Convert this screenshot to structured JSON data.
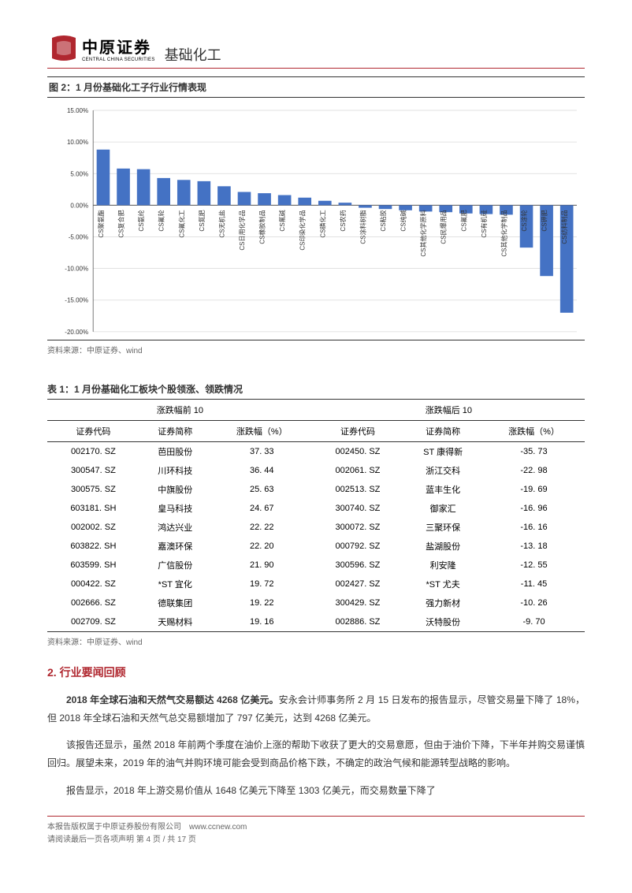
{
  "header": {
    "logo_cn": "中原证券",
    "logo_en": "CENTRAL CHINA SECURITIES",
    "doc_title": "基础化工"
  },
  "figure2": {
    "title": "图 2：1 月份基础化工子行业行情表现",
    "source": "资料来源：中原证券、wind",
    "type": "bar",
    "ylim": [
      -20,
      15
    ],
    "ytick_step": 5,
    "yticks": [
      "15.00%",
      "10.00%",
      "5.00%",
      "0.00%",
      "-5.00%",
      "-10.00%",
      "-15.00%",
      "-20.00%"
    ],
    "ytick_vals": [
      15,
      10,
      5,
      0,
      -5,
      -10,
      -15,
      -20
    ],
    "bar_color": "#4472c4",
    "grid_color": "#d9d9d9",
    "axis_color": "#595959",
    "background_color": "#ffffff",
    "title_fontsize": 12,
    "label_fontsize": 8,
    "bar_width": 0.65,
    "categories": [
      "CS聚氨酯",
      "CS复合肥",
      "CS氨纶",
      "CS氟轮",
      "CS氟化工",
      "CS氮肥",
      "CS无机盐",
      "CS日用化学品",
      "CS橡胶制品",
      "CS氟碱",
      "CS印染化学品",
      "CS磷化工",
      "CS农药",
      "CS涂料树脂",
      "CS粘胶",
      "CS纯碱",
      "CS其他化学原料",
      "CS民爆用品",
      "CS氟肥",
      "CS有机硅",
      "CS其他化学制品",
      "CS涂轮",
      "CS钾肥",
      "CS纺料制品"
    ],
    "values": [
      8.8,
      5.8,
      5.7,
      4.3,
      4.0,
      3.8,
      3.0,
      2.1,
      1.9,
      1.6,
      1.2,
      0.7,
      0.4,
      -0.4,
      -0.6,
      -0.8,
      -1.0,
      -1.1,
      -1.3,
      -1.4,
      -1.5,
      -6.7,
      -11.2,
      -17.0
    ]
  },
  "table1": {
    "title": "表 1：1 月份基础化工板块个股领涨、领跌情况",
    "source": "资料来源：中原证券、wind",
    "group_left": "涨跌幅前 10",
    "group_right": "涨跌幅后 10",
    "columns": [
      "证券代码",
      "证券简称",
      "涨跌幅（%）",
      "证券代码",
      "证券简称",
      "涨跌幅（%）"
    ],
    "rows": [
      [
        "002170. SZ",
        "芭田股份",
        "37. 33",
        "002450. SZ",
        "ST 康得新",
        "-35. 73"
      ],
      [
        "300547. SZ",
        "川环科技",
        "36. 44",
        "002061. SZ",
        "浙江交科",
        "-22. 98"
      ],
      [
        "300575. SZ",
        "中旗股份",
        "25. 63",
        "002513. SZ",
        "蓝丰生化",
        "-19. 69"
      ],
      [
        "603181. SH",
        "皇马科技",
        "24. 67",
        "300740. SZ",
        "御家汇",
        "-16. 96"
      ],
      [
        "002002. SZ",
        "鸿达兴业",
        "22. 22",
        "300072. SZ",
        "三聚环保",
        "-16. 16"
      ],
      [
        "603822. SH",
        "嘉澳环保",
        "22. 20",
        "000792. SZ",
        "盐湖股份",
        "-13. 18"
      ],
      [
        "603599. SH",
        "广信股份",
        "21. 90",
        "300596. SZ",
        "利安隆",
        "-12. 55"
      ],
      [
        "000422. SZ",
        "*ST 宜化",
        "19. 72",
        "002427. SZ",
        "*ST 尤夫",
        "-11. 45"
      ],
      [
        "002666. SZ",
        "德联集团",
        "19. 22",
        "300429. SZ",
        "强力新材",
        "-10. 26"
      ],
      [
        "002709. SZ",
        "天赐材料",
        "19. 16",
        "002886. SZ",
        "沃特股份",
        "-9. 70"
      ]
    ]
  },
  "section2": {
    "heading": "2. 行业要闻回顾",
    "para1_bold": "2018 年全球石油和天然气交易额达 4268 亿美元。",
    "para1_rest": "安永会计师事务所 2 月 15 日发布的报告显示，尽管交易量下降了 18%，但 2018 年全球石油和天然气总交易额增加了 797 亿美元，达到 4268 亿美元。",
    "para2": "该报告还显示，虽然 2018 年前两个季度在油价上涨的帮助下收获了更大的交易意愿，但由于油价下降，下半年并购交易谨慎回归。展望未来，2019 年的油气并购环境可能会受到商品价格下跌，不确定的政治气候和能源转型战略的影响。",
    "para3": "报告显示，2018 年上游交易价值从 1648 亿美元下降至 1303 亿美元，而交易数量下降了"
  },
  "footer": {
    "line1": "本报告版权属于中原证券股份有限公司　www.ccnew.com",
    "line2": "请阅读最后一页各项声明 第 4 页 / 共 17 页"
  },
  "colors": {
    "brand_red": "#b0272f",
    "text_dark": "#333333",
    "text_gray": "#666666"
  }
}
